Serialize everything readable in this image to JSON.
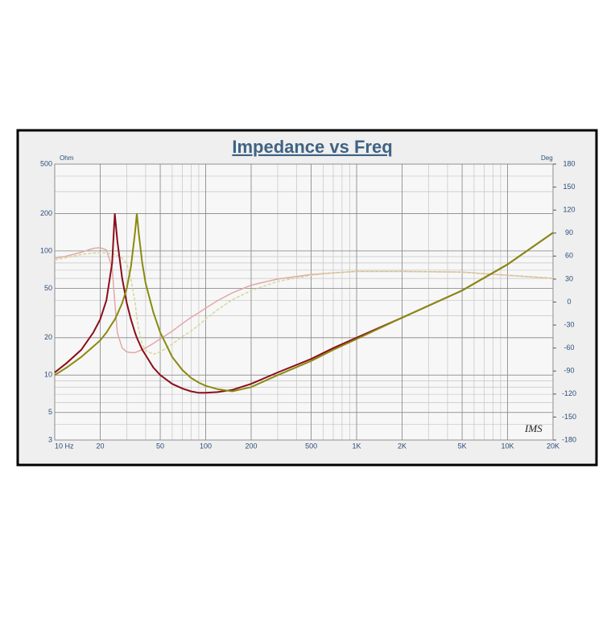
{
  "chart_data": {
    "type": "line",
    "title": "Impedance vs Freq",
    "ylabel": "Ohm",
    "y2label": "Deg",
    "annotation": "IMS",
    "xscale": "log",
    "yscale": "log",
    "grid": true,
    "x": [
      10,
      12,
      15,
      18,
      20,
      22,
      24,
      25,
      26,
      28,
      30,
      32,
      34,
      35,
      36,
      38,
      40,
      45,
      50,
      60,
      70,
      80,
      90,
      100,
      120,
      150,
      200,
      300,
      500,
      700,
      1000,
      2000,
      5000,
      10000,
      20000
    ],
    "series": [
      {
        "color": "#8b0d1a",
        "values": [
          10.5,
          12.5,
          16,
          22,
          28,
          40,
          80,
          200,
          120,
          60,
          38,
          28,
          22,
          20,
          18.5,
          16,
          14.5,
          11.5,
          10,
          8.5,
          7.8,
          7.4,
          7.2,
          7.2,
          7.3,
          7.6,
          8.5,
          10.5,
          13.5,
          16.5,
          20,
          29,
          48,
          78,
          140
        ]
      },
      {
        "color": "#8a8a10",
        "values": [
          10,
          11.5,
          14,
          17,
          19,
          22,
          26,
          28,
          31,
          38,
          50,
          75,
          140,
          200,
          140,
          80,
          55,
          32,
          22,
          14,
          11,
          9.5,
          8.7,
          8.2,
          7.7,
          7.4,
          8,
          10,
          13,
          16,
          19.5,
          29,
          48,
          78,
          140
        ]
      },
      {
        "color": "#e2a8a8",
        "axis": "y2",
        "values": [
          57,
          60,
          65,
          70,
          71,
          68,
          45,
          0,
          -40,
          -60,
          -65,
          -66,
          -66,
          -65,
          -64,
          -62,
          -60,
          -54,
          -48,
          -38,
          -28,
          -20,
          -14,
          -8,
          2,
          12,
          22,
          30,
          36,
          38,
          40,
          40,
          39,
          35,
          31
        ]
      },
      {
        "color": "#d4d89a",
        "axis": "y2",
        "dash": "4 2",
        "values": [
          55,
          58,
          62,
          64,
          64,
          64,
          63,
          62,
          61,
          57,
          50,
          30,
          0,
          -20,
          -35,
          -55,
          -63,
          -68,
          -65,
          -55,
          -45,
          -38,
          -30,
          -22,
          -10,
          3,
          15,
          27,
          35,
          38,
          40,
          40,
          39,
          35,
          31
        ]
      }
    ],
    "xlim": [
      10,
      20000
    ],
    "xticks": [
      {
        "value": 10,
        "label": "10 Hz"
      },
      20,
      50,
      100,
      200,
      500,
      {
        "value": 1000,
        "label": "1K"
      },
      {
        "value": 2000,
        "label": "2K"
      },
      {
        "value": 5000,
        "label": "5K"
      },
      {
        "value": 10000,
        "label": "10K"
      },
      {
        "value": 20000,
        "label": "20K"
      }
    ],
    "ylim": [
      3,
      500
    ],
    "yticks": [
      3,
      5,
      10,
      20,
      50,
      100,
      200,
      500
    ],
    "y2lim": [
      -180,
      180
    ],
    "y2ticks": [
      -180,
      -150,
      -120,
      -90,
      -60,
      -30,
      0,
      30,
      60,
      90,
      120,
      150,
      180
    ]
  }
}
